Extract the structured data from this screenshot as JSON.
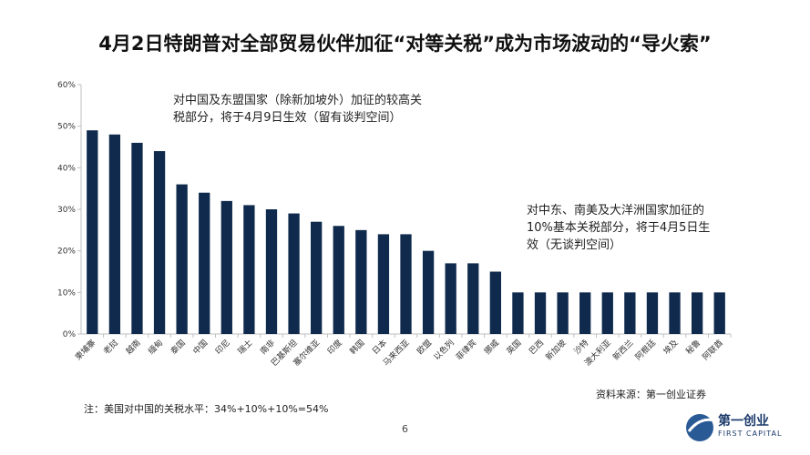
{
  "title": "4月2日特朗普对全部贸易伙伴加征“对等关税”成为市场波动的“导火索”",
  "annotations": {
    "first": [
      "对中国及东盟国家（除新加坡外）加征的较高关",
      "税部分，将于4月9日生效（留有谈判空间）"
    ],
    "second": [
      "对中东、南美及大洋洲国家加征的",
      "10%基本关税部分，将于4月5日生",
      "效（无谈判空间）"
    ]
  },
  "note": "注：美国对中国的关税水平：34%+10%+10%=54%",
  "source": "资料来源：第一创业证券",
  "page_number": "6",
  "logo": {
    "cn": "第一创业",
    "en": "FIRST CAPITAL"
  },
  "colors": {
    "bar": "#0f2a4d",
    "axis": "#bfbfbf"
  },
  "chart_data": {
    "type": "bar",
    "categories": [
      "柬埔寨",
      "老挝",
      "越南",
      "缅甸",
      "泰国",
      "中国",
      "印尼",
      "瑞士",
      "南非",
      "巴基斯坦",
      "塞尔维亚",
      "印度",
      "韩国",
      "日本",
      "马来西亚",
      "欧盟",
      "以色列",
      "菲律宾",
      "挪威",
      "英国",
      "巴西",
      "新加坡",
      "沙特",
      "澳大利亚",
      "新西兰",
      "阿根廷",
      "埃及",
      "秘鲁",
      "阿联酋"
    ],
    "values": [
      49,
      48,
      46,
      44,
      36,
      34,
      32,
      31,
      30,
      29,
      27,
      26,
      25,
      24,
      24,
      20,
      17,
      17,
      15,
      10,
      10,
      10,
      10,
      10,
      10,
      10,
      10,
      10,
      10
    ],
    "ylim": [
      0,
      60
    ],
    "yticks": [
      "0%",
      "10%",
      "20%",
      "30%",
      "40%",
      "50%",
      "60%"
    ],
    "grid": false
  }
}
